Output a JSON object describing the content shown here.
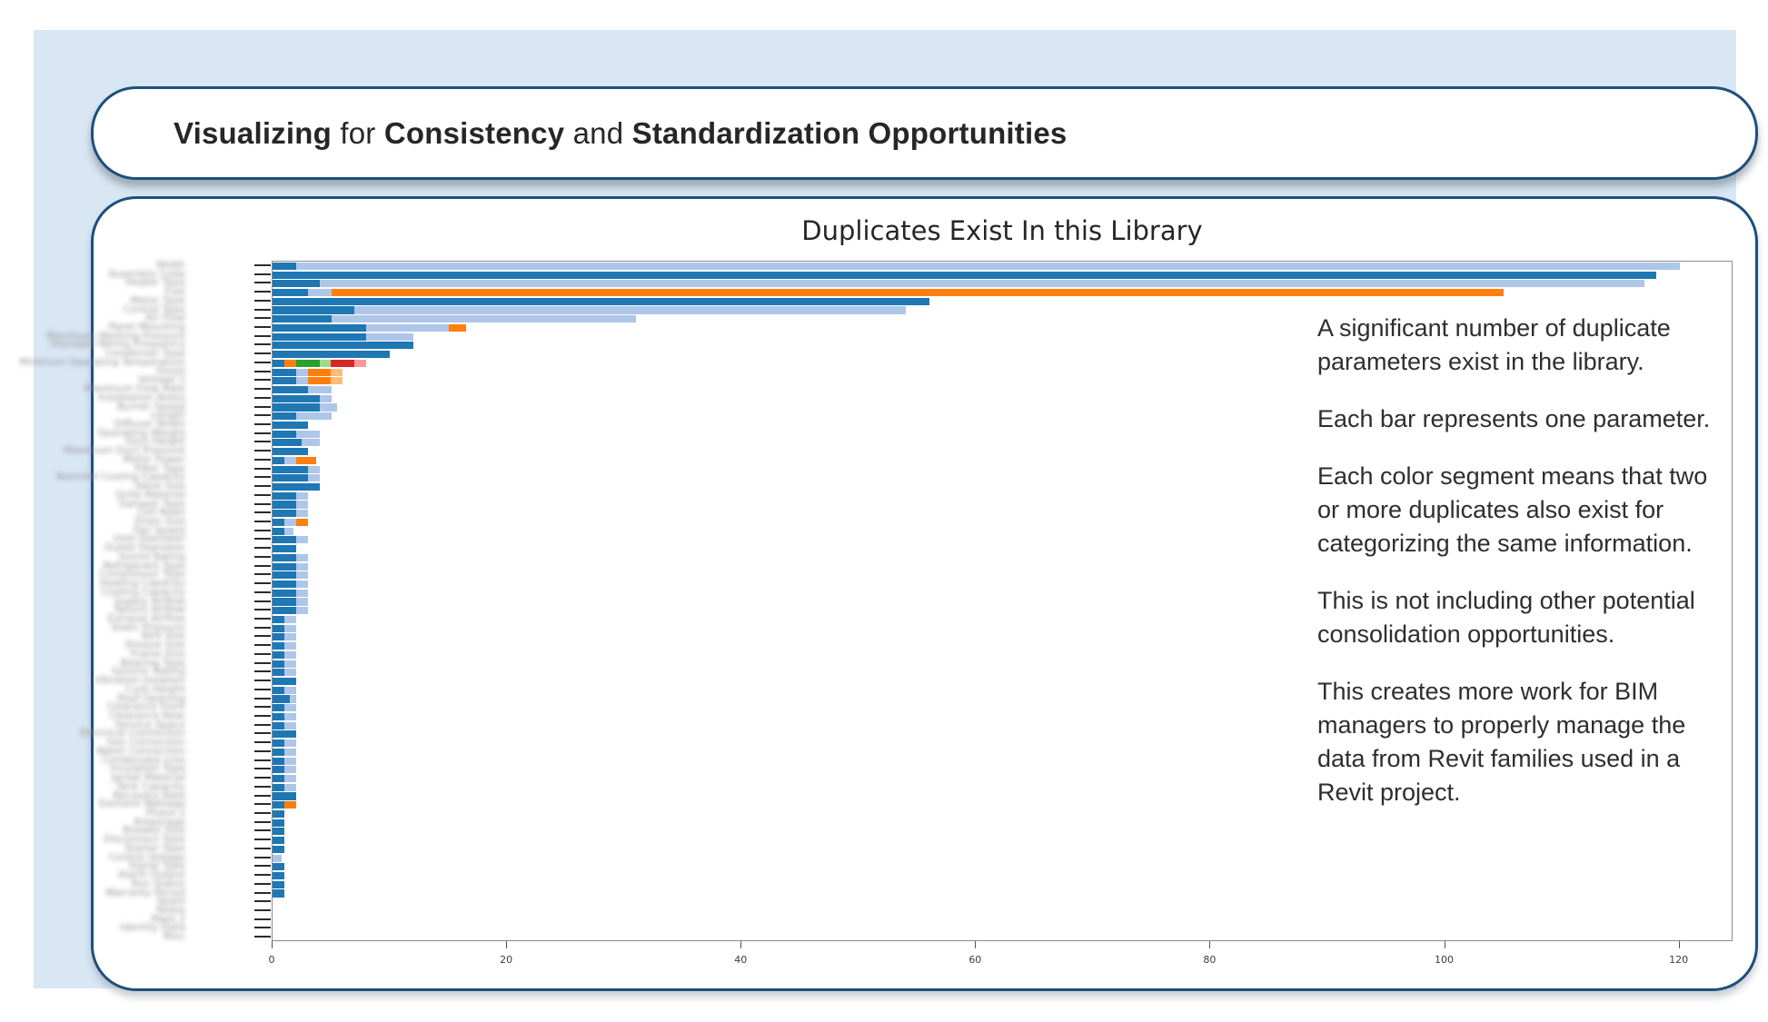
{
  "slide": {
    "title_segments": [
      {
        "text": "Visualizing ",
        "bold": true
      },
      {
        "text": "for ",
        "bold": false
      },
      {
        "text": "Consistency ",
        "bold": true
      },
      {
        "text": "and ",
        "bold": false
      },
      {
        "text": "Standardization Opportunities",
        "bold": true
      }
    ]
  },
  "chart_data": {
    "type": "bar",
    "orientation": "horizontal",
    "stacked": true,
    "title": "Duplicates Exist In this Library",
    "xlabel": "",
    "ylabel": "",
    "xlim": [
      0,
      124.6
    ],
    "x_ticks": [
      0,
      20,
      40,
      60,
      80,
      100,
      120
    ],
    "grid": false,
    "legend": "none",
    "colors": {
      "d": "#1f77b4",
      "l": "#aec7e8",
      "o": "#ff7f0e",
      "lo": "#ffbb78",
      "g": "#2ca02c",
      "lg": "#98df8a",
      "r": "#d62728",
      "p": "#ff9896"
    },
    "color_legend_meaning": {
      "d": "dark-blue duplicate group",
      "l": "light-blue duplicate group",
      "o": "orange duplicate group",
      "lo": "light-orange duplicate group",
      "g": "green duplicate group",
      "lg": "light-green duplicate group",
      "r": "red duplicate group",
      "p": "pink duplicate group"
    },
    "rows": [
      [
        [
          "d",
          2
        ],
        [
          "l",
          118
        ]
      ],
      [
        [
          "d",
          118
        ]
      ],
      [
        [
          "d",
          4
        ],
        [
          "l",
          113
        ]
      ],
      [
        [
          "d",
          3
        ],
        [
          "l",
          2
        ],
        [
          "o",
          100
        ]
      ],
      [
        [
          "d",
          56
        ]
      ],
      [
        [
          "d",
          7
        ],
        [
          "l",
          47
        ]
      ],
      [
        [
          "d",
          5
        ],
        [
          "l",
          26
        ]
      ],
      [
        [
          "d",
          8
        ],
        [
          "l",
          7
        ],
        [
          "o",
          1.5
        ]
      ],
      [
        [
          "d",
          8
        ],
        [
          "l",
          4
        ]
      ],
      [
        [
          "d",
          12
        ]
      ],
      [
        [
          "d",
          10
        ]
      ],
      [
        [
          "d",
          1
        ],
        [
          "o",
          1
        ],
        [
          "g",
          2
        ],
        [
          "lg",
          1
        ],
        [
          "r",
          2
        ],
        [
          "p",
          1
        ]
      ],
      [
        [
          "d",
          2
        ],
        [
          "l",
          1
        ],
        [
          "o",
          2
        ],
        [
          "lo",
          1
        ]
      ],
      [
        [
          "d",
          2
        ],
        [
          "l",
          1
        ],
        [
          "o",
          2
        ],
        [
          "lo",
          1
        ]
      ],
      [
        [
          "d",
          3
        ],
        [
          "l",
          2
        ]
      ],
      [
        [
          "d",
          4
        ],
        [
          "l",
          1
        ]
      ],
      [
        [
          "d",
          4
        ],
        [
          "l",
          1.5
        ]
      ],
      [
        [
          "d",
          2
        ],
        [
          "l",
          3
        ]
      ],
      [
        [
          "d",
          3
        ]
      ],
      [
        [
          "d",
          2
        ],
        [
          "l",
          2
        ]
      ],
      [
        [
          "d",
          2.5
        ],
        [
          "l",
          1.5
        ]
      ],
      [
        [
          "d",
          3
        ]
      ],
      [
        [
          "d",
          1
        ],
        [
          "l",
          1
        ],
        [
          "o",
          1.7
        ]
      ],
      [
        [
          "d",
          3
        ],
        [
          "l",
          1
        ]
      ],
      [
        [
          "d",
          3
        ],
        [
          "l",
          1
        ]
      ],
      [
        [
          "d",
          4
        ]
      ],
      [
        [
          "d",
          2
        ],
        [
          "l",
          1
        ]
      ],
      [
        [
          "d",
          2
        ],
        [
          "l",
          1
        ]
      ],
      [
        [
          "d",
          2
        ],
        [
          "l",
          1
        ]
      ],
      [
        [
          "d",
          1
        ],
        [
          "l",
          1
        ],
        [
          "o",
          1
        ]
      ],
      [
        [
          "d",
          1
        ],
        [
          "l",
          0.8
        ]
      ],
      [
        [
          "d",
          2
        ],
        [
          "l",
          1
        ]
      ],
      [
        [
          "d",
          2
        ]
      ],
      [
        [
          "d",
          2
        ],
        [
          "l",
          1
        ]
      ],
      [
        [
          "d",
          2
        ],
        [
          "l",
          1
        ]
      ],
      [
        [
          "d",
          2
        ],
        [
          "l",
          1
        ]
      ],
      [
        [
          "d",
          2
        ],
        [
          "l",
          1
        ]
      ],
      [
        [
          "d",
          2
        ],
        [
          "l",
          1
        ]
      ],
      [
        [
          "d",
          2
        ],
        [
          "l",
          1
        ]
      ],
      [
        [
          "d",
          2
        ],
        [
          "l",
          1
        ]
      ],
      [
        [
          "d",
          1
        ],
        [
          "l",
          1
        ]
      ],
      [
        [
          "d",
          1
        ],
        [
          "l",
          1
        ]
      ],
      [
        [
          "d",
          1
        ],
        [
          "l",
          1
        ]
      ],
      [
        [
          "d",
          1
        ],
        [
          "l",
          1
        ]
      ],
      [
        [
          "d",
          1
        ],
        [
          "l",
          1
        ]
      ],
      [
        [
          "d",
          1
        ],
        [
          "l",
          1
        ]
      ],
      [
        [
          "d",
          1
        ],
        [
          "l",
          1
        ]
      ],
      [
        [
          "d",
          2
        ]
      ],
      [
        [
          "d",
          1
        ],
        [
          "l",
          1
        ]
      ],
      [
        [
          "d",
          1.5
        ],
        [
          "l",
          0.5
        ]
      ],
      [
        [
          "d",
          1
        ],
        [
          "l",
          1
        ]
      ],
      [
        [
          "d",
          1
        ],
        [
          "l",
          1
        ]
      ],
      [
        [
          "d",
          1
        ],
        [
          "l",
          1
        ]
      ],
      [
        [
          "d",
          2
        ]
      ],
      [
        [
          "d",
          1
        ],
        [
          "l",
          1
        ]
      ],
      [
        [
          "d",
          1
        ],
        [
          "l",
          1
        ]
      ],
      [
        [
          "d",
          1
        ],
        [
          "l",
          1
        ]
      ],
      [
        [
          "d",
          1
        ],
        [
          "l",
          1
        ]
      ],
      [
        [
          "d",
          1
        ],
        [
          "l",
          1
        ]
      ],
      [
        [
          "d",
          1
        ],
        [
          "l",
          1
        ]
      ],
      [
        [
          "d",
          2
        ]
      ],
      [
        [
          "d",
          1
        ],
        [
          "o",
          1
        ]
      ],
      [
        [
          "d",
          1
        ]
      ],
      [
        [
          "d",
          1
        ]
      ],
      [
        [
          "d",
          1
        ]
      ],
      [
        [
          "d",
          1
        ]
      ],
      [
        [
          "d",
          1
        ]
      ],
      [
        [
          "l",
          0.8
        ]
      ],
      [
        [
          "d",
          1
        ]
      ],
      [
        [
          "d",
          1
        ]
      ],
      [
        [
          "d",
          1
        ]
      ],
      [
        [
          "d",
          1
        ]
      ],
      [],
      [],
      [],
      [],
      []
    ],
    "y_labels_blurred": [
      "Width",
      "Assembly Code",
      "Heater Type",
      "Fuel",
      "Motor Type",
      "Control Type",
      "Air Flow",
      "Panel Mounting",
      "Maximum Working Pressure",
      "Standard Wiring Frequency",
      "Condenser Type",
      "Minimum Operating Temperature",
      "Finish",
      "Voltage 2",
      "Maximum Flow Rate",
      "Installation Notes",
      "Burner Speed",
      "Length",
      "Diffuser Width",
      "Operating Weight",
      "Duct Height",
      "Maximum Duct Pressure",
      "Motor Power",
      "Filter Type",
      "Nominal Cooling Capacity",
      "Valve Size",
      "Grille Material",
      "Damper Type",
      "Coil Rows",
      "Drain Size",
      "Fan Speed",
      "Inlet Diameter",
      "Outlet Diameter",
      "Sound Rating",
      "Refrigerant Type",
      "Compressor Type",
      "Heating Capacity",
      "Cooling Capacity",
      "Supply Airflow",
      "Return Airflow",
      "Exhaust Airflow",
      "Static Pressure",
      "Belt Size",
      "Sheave Size",
      "Frame Size",
      "Bearing Type",
      "Seismic Rating",
      "Vibration Isolation",
      "Curb Height",
      "Roof Opening",
      "Clearance Front",
      "Clearance Rear",
      "Service Space",
      "Electrical Connection",
      "Gas Connection",
      "Water Connection",
      "Condensate Line",
      "Insulation Type",
      "Jacket Material",
      "Tank Capacity",
      "Recovery Rate",
      "Element Wattage",
      "Phase 2",
      "Amperage",
      "Breaker Size",
      "Disconnect Type",
      "Starter Type",
      "Control Voltage",
      "Signal Type",
      "Alarm Output",
      "Run Status",
      "Warranty Period",
      "Spare",
      "Notes",
      "Mark 2",
      "Identity Data",
      "Misc"
    ],
    "annotation_paragraphs": [
      "A significant number of duplicate parameters exist in the library.",
      "Each bar represents one parameter.",
      "Each color segment means that two or more duplicates also exist for categorizing the same information.",
      "This is not including other potential consolidation opportunities.",
      "This creates more work for BIM managers to properly manage the data from Revit families used in a Revit project."
    ]
  }
}
